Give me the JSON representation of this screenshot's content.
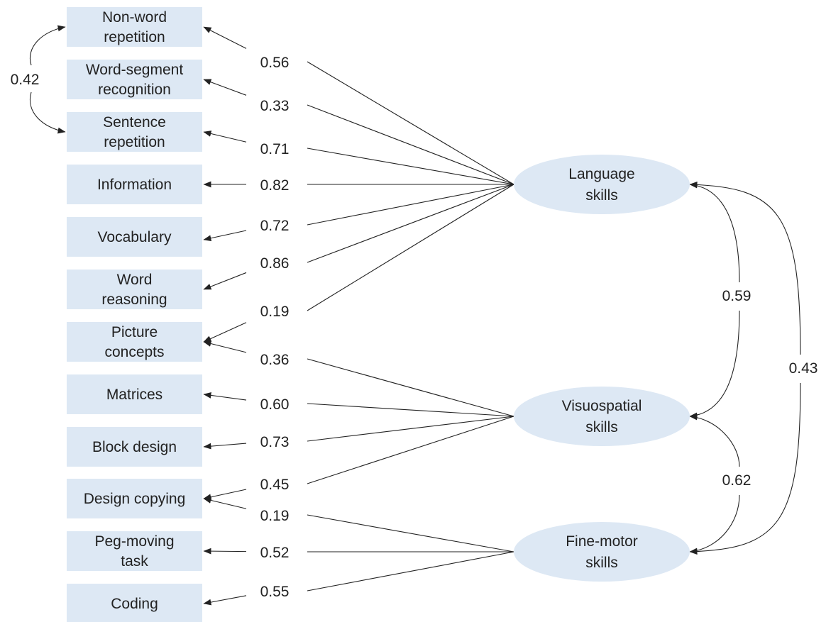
{
  "colors": {
    "fill": "#dde8f4",
    "line": "#222222",
    "text": "#222222"
  },
  "indicators": [
    {
      "id": "nonword",
      "lines": [
        "Non-word",
        "repetition"
      ]
    },
    {
      "id": "wordseg",
      "lines": [
        "Word-segment",
        "recognition"
      ]
    },
    {
      "id": "sentrep",
      "lines": [
        "Sentence",
        "repetition"
      ]
    },
    {
      "id": "info",
      "lines": [
        "Information"
      ]
    },
    {
      "id": "vocab",
      "lines": [
        "Vocabulary"
      ]
    },
    {
      "id": "wordreason",
      "lines": [
        "Word",
        "reasoning"
      ]
    },
    {
      "id": "picconcepts",
      "lines": [
        "Picture",
        "concepts"
      ]
    },
    {
      "id": "matrices",
      "lines": [
        "Matrices"
      ]
    },
    {
      "id": "block",
      "lines": [
        "Block design"
      ]
    },
    {
      "id": "designcopy",
      "lines": [
        "Design copying"
      ]
    },
    {
      "id": "peg",
      "lines": [
        "Peg-moving",
        "task"
      ]
    },
    {
      "id": "coding",
      "lines": [
        "Coding"
      ]
    }
  ],
  "factors": [
    {
      "id": "language",
      "lines": [
        "Language",
        "skills"
      ]
    },
    {
      "id": "visuospatial",
      "lines": [
        "Visuospatial",
        "skills"
      ]
    },
    {
      "id": "finemotor",
      "lines": [
        "Fine-motor",
        "skills"
      ]
    }
  ],
  "loadings": [
    {
      "from": "language",
      "to": "nonword",
      "value": "0.56"
    },
    {
      "from": "language",
      "to": "wordseg",
      "value": "0.33"
    },
    {
      "from": "language",
      "to": "sentrep",
      "value": "0.71"
    },
    {
      "from": "language",
      "to": "info",
      "value": "0.82"
    },
    {
      "from": "language",
      "to": "vocab",
      "value": "0.72"
    },
    {
      "from": "language",
      "to": "wordreason",
      "value": "0.86"
    },
    {
      "from": "language",
      "to": "picconcepts",
      "value": "0.19"
    },
    {
      "from": "visuospatial",
      "to": "picconcepts",
      "value": "0.36"
    },
    {
      "from": "visuospatial",
      "to": "matrices",
      "value": "0.60"
    },
    {
      "from": "visuospatial",
      "to": "block",
      "value": "0.73"
    },
    {
      "from": "visuospatial",
      "to": "designcopy",
      "value": "0.45"
    },
    {
      "from": "finemotor",
      "to": "designcopy",
      "value": "0.19"
    },
    {
      "from": "finemotor",
      "to": "peg",
      "value": "0.52"
    },
    {
      "from": "finemotor",
      "to": "coding",
      "value": "0.55"
    }
  ],
  "correlations": [
    {
      "a": "nonword",
      "b": "sentrep",
      "value": "0.42"
    },
    {
      "a": "language",
      "b": "visuospatial",
      "value": "0.59"
    },
    {
      "a": "visuospatial",
      "b": "finemotor",
      "value": "0.62"
    },
    {
      "a": "language",
      "b": "finemotor",
      "value": "0.43"
    }
  ]
}
